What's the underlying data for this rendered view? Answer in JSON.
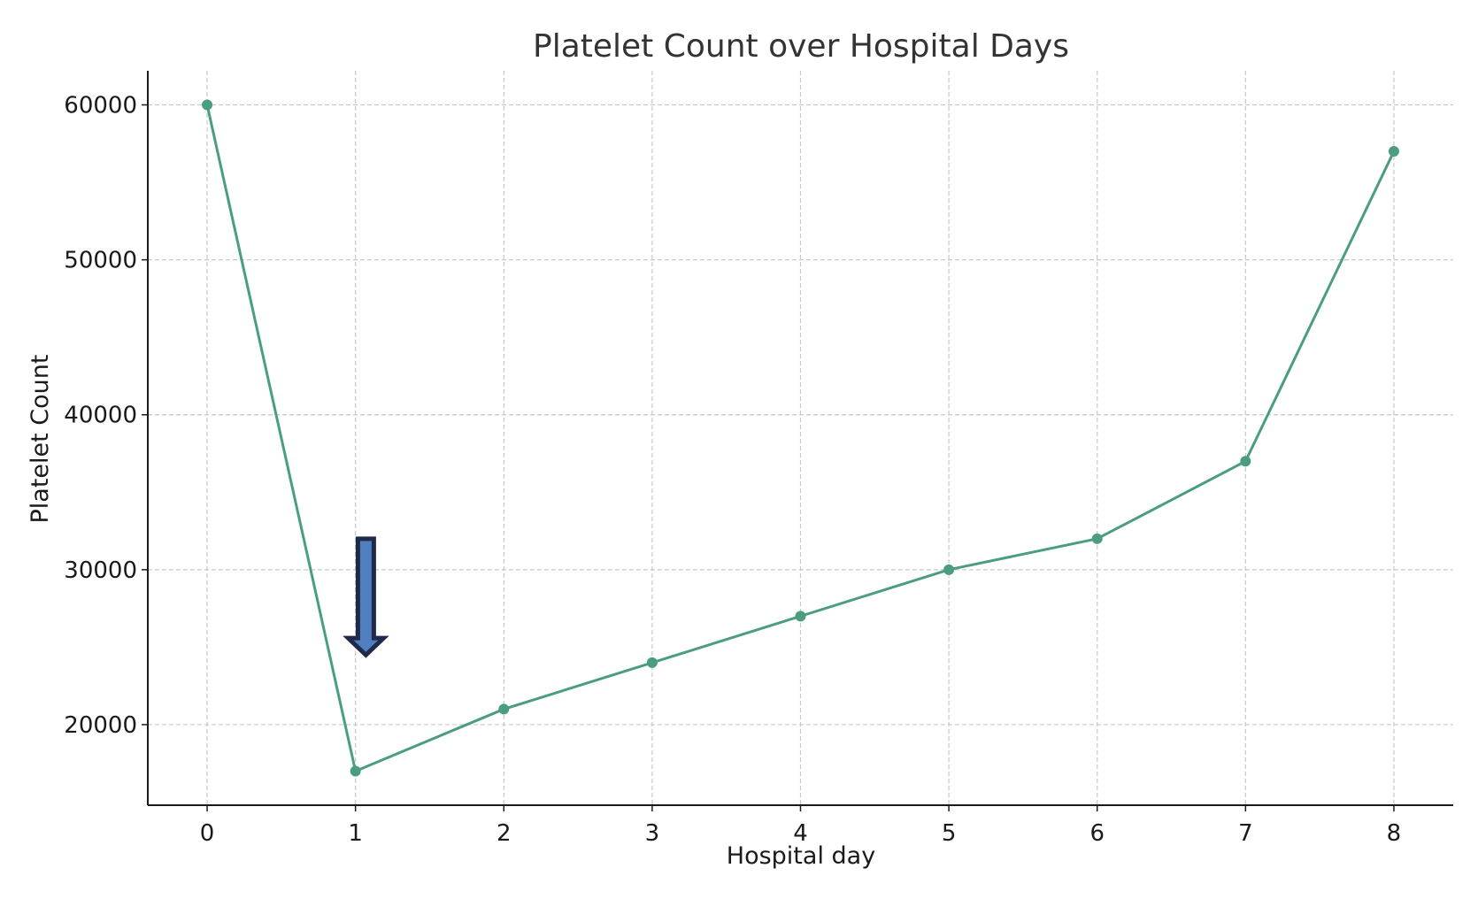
{
  "chart_data": {
    "type": "line",
    "title": "Platelet Count over Hospital Days",
    "xlabel": "Hospital day",
    "ylabel": "Platelet Count",
    "x": [
      0,
      1,
      2,
      3,
      4,
      5,
      6,
      7,
      8
    ],
    "series": [
      {
        "values": [
          60000,
          17000,
          21000,
          24000,
          27000,
          30000,
          32000,
          37000,
          57000
        ],
        "color": "#4a9d7f"
      }
    ],
    "xlim": [
      -0.4,
      8.4
    ],
    "ylim": [
      14800,
      62200
    ],
    "x_ticks": [
      0,
      1,
      2,
      3,
      4,
      5,
      6,
      7,
      8
    ],
    "y_ticks": [
      20000,
      30000,
      40000,
      50000,
      60000
    ],
    "grid": true,
    "annotation": {
      "type": "down-arrow",
      "x": 1.07,
      "y_top": 32000,
      "y_tip": 24500,
      "fill_color": "#4f7fbf",
      "edge_color": "#1f2a4a"
    }
  }
}
